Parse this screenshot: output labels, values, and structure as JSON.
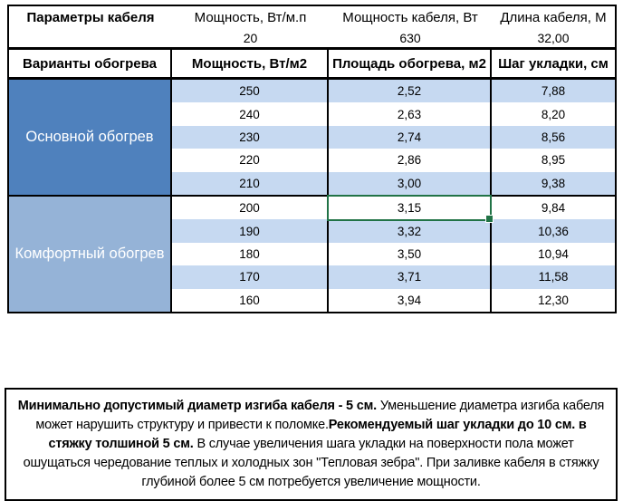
{
  "colors": {
    "section1": "#4F81BD",
    "section2": "#95B3D7",
    "stripe": "#C6D9F1",
    "selection": "#217346"
  },
  "params": {
    "title": "Параметры кабеля",
    "items": [
      {
        "label": "Мощность, Вт/м.п",
        "value": "20"
      },
      {
        "label": "Мощность кабеля, Вт",
        "value": "630"
      },
      {
        "label": "Длина кабеля, М",
        "value": "32,00"
      }
    ]
  },
  "heating": {
    "headers": [
      "Варианты обогрева",
      "Мощность, Вт/м2",
      "Площадь обогрева, м2",
      "Шаг укладки, см"
    ],
    "sections": [
      {
        "label": "Основной обогрев",
        "rows": [
          [
            "250",
            "2,52",
            "7,88"
          ],
          [
            "240",
            "2,63",
            "8,20"
          ],
          [
            "230",
            "2,74",
            "8,56"
          ],
          [
            "220",
            "2,86",
            "8,95"
          ],
          [
            "210",
            "3,00",
            "9,38"
          ]
        ]
      },
      {
        "label": "Комфортный обогрев",
        "rows": [
          [
            "200",
            "3,15",
            "9,84"
          ],
          [
            "190",
            "3,32",
            "10,36"
          ],
          [
            "180",
            "3,50",
            "10,94"
          ],
          [
            "170",
            "3,71",
            "11,58"
          ],
          [
            "160",
            "3,94",
            "12,30"
          ]
        ]
      }
    ],
    "selected_cell": {
      "section": 1,
      "row": 0,
      "col": 1,
      "value": "3,15"
    }
  },
  "note": {
    "segments": [
      {
        "text": "Минимально допустимый диаметр изгиба кабеля - 5 см.",
        "bold": true
      },
      {
        "text": "  Уменьшение диаметра изгиба кабеля может нарушить структуру и привести к поломке.",
        "bold": false
      },
      {
        "text": "Рекомендуемый шаг укладки до 10 см. в стяжку толшиной 5 см.",
        "bold": true
      },
      {
        "text": " В  случае увеличения шага укладки на поверхности пола может ошущаться чередование теплых и холодных зон \"Тепловая зебра\". При заливке кабеля в стяжку глубиной более 5 см потребуется увеличение мощности.",
        "bold": false
      }
    ]
  }
}
